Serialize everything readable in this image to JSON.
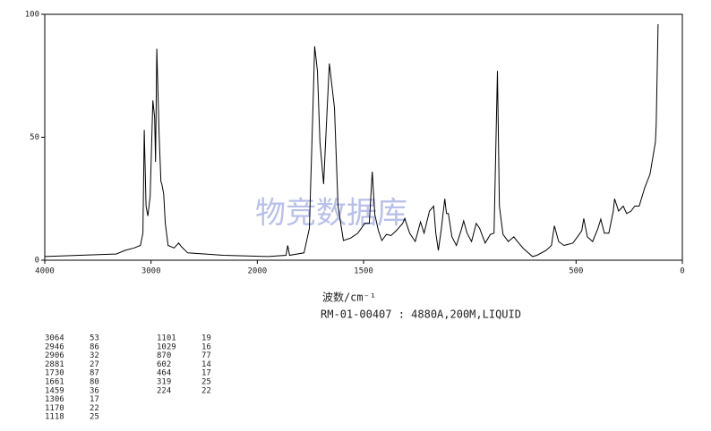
{
  "chart_data": {
    "type": "line",
    "x_label": "波数/cm⁻¹",
    "subtitle": "RM-01-00407 : 4880A,200M,LIQUID",
    "watermark": "物竞数据库",
    "xlim": [
      4000,
      0
    ],
    "x_scale_change": {
      "at": 2000,
      "factor": 2
    },
    "xticks": [
      4000,
      3000,
      2000,
      1500,
      500,
      0
    ],
    "ylim": [
      0,
      100
    ],
    "yticks": [
      0,
      50,
      100
    ],
    "series": [
      {
        "color": "#000000",
        "x": [
          4000,
          3328,
          3244,
          3160,
          3100,
          3076,
          3064,
          3047,
          3030,
          3008,
          2983,
          2966,
          2958,
          2946,
          2924,
          2907,
          2899,
          2881,
          2866,
          2840,
          2782,
          2740,
          2714,
          2655,
          2320,
          1949,
          1865,
          1857,
          1848,
          1780,
          1755,
          1738,
          1730,
          1717,
          1705,
          1688,
          1671,
          1661,
          1637,
          1620,
          1595,
          1561,
          1527,
          1494,
          1473,
          1459,
          1447,
          1430,
          1414,
          1392,
          1371,
          1346,
          1316,
          1306,
          1283,
          1257,
          1232,
          1215,
          1190,
          1170,
          1160,
          1148,
          1135,
          1118,
          1110,
          1101,
          1084,
          1063,
          1038,
          1029,
          1013,
          992,
          970,
          954,
          928,
          903,
          886,
          870,
          861,
          844,
          819,
          793,
          776,
          747,
          705,
          684,
          641,
          616,
          602,
          582,
          557,
          515,
          494,
          473,
          464,
          447,
          422,
          397,
          384,
          367,
          346,
          325,
          319,
          300,
          278,
          262,
          241,
          224,
          203,
          177,
          152,
          127,
          123,
          114
        ],
        "values": [
          1.5,
          2.5,
          4,
          5,
          6,
          11,
          53,
          22,
          18,
          26,
          65,
          58,
          40,
          86,
          51,
          32,
          31,
          27,
          15,
          6,
          5,
          7,
          5.5,
          3,
          2,
          1.5,
          2,
          6,
          2,
          3,
          13,
          62,
          87,
          77,
          48,
          31,
          62,
          80,
          62,
          22,
          8,
          9,
          11,
          15,
          15,
          36,
          18.5,
          12,
          8,
          10.5,
          10,
          12,
          15,
          17,
          11,
          7.6,
          15.6,
          11,
          20,
          22,
          11,
          4,
          12,
          25,
          19,
          19,
          9.5,
          6,
          13,
          16,
          11,
          7.6,
          15,
          13,
          7,
          10.5,
          11,
          77,
          22,
          10.5,
          7.6,
          9.5,
          7.6,
          4.7,
          1.5,
          2,
          4,
          6,
          14,
          7.6,
          6,
          7,
          9.5,
          12,
          17,
          9.5,
          7.6,
          13,
          16.7,
          11,
          11,
          20,
          25,
          20,
          22,
          19,
          20,
          22,
          22,
          29.5,
          35,
          48,
          55,
          96
        ]
      }
    ],
    "peak_table": [
      [
        [
          3064,
          53
        ],
        [
          2946,
          86
        ],
        [
          2906,
          32
        ],
        [
          2881,
          27
        ],
        [
          1730,
          87
        ],
        [
          1661,
          80
        ],
        [
          1459,
          36
        ],
        [
          1306,
          17
        ],
        [
          1170,
          22
        ],
        [
          1118,
          25
        ]
      ],
      [
        [
          1101,
          19
        ],
        [
          1029,
          16
        ],
        [
          870,
          77
        ],
        [
          602,
          14
        ],
        [
          464,
          17
        ],
        [
          319,
          25
        ],
        [
          224,
          22
        ]
      ]
    ]
  }
}
